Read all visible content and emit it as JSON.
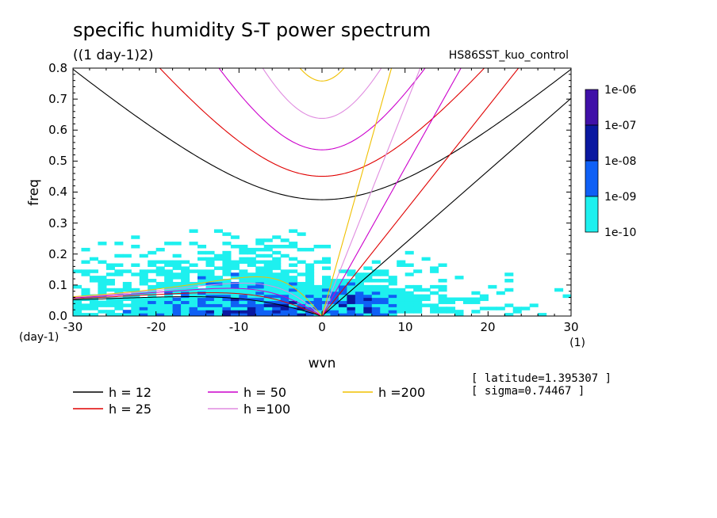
{
  "chart_data": {
    "type": "heatmap",
    "title": "specific humidity S-T power spectrum",
    "subtitle": "((1 day-1)2)",
    "run_label": "HS86SST_kuo_control",
    "xlabel": "wvn",
    "ylabel": "freq",
    "xunit": "(1)",
    "yunit": "(day-1)",
    "xlim": [
      -30,
      30
    ],
    "ylim": [
      0,
      0.8
    ],
    "xticks": [
      "-30",
      "-20",
      "-10",
      "0",
      "10",
      "20",
      "30"
    ],
    "yticks": [
      "0.0",
      "0.1",
      "0.2",
      "0.3",
      "0.4",
      "0.5",
      "0.6",
      "0.7",
      "0.8"
    ],
    "colorbar": {
      "labels": [
        "1e-06",
        "1e-07",
        "1e-08",
        "1e-09",
        "1e-10"
      ],
      "colors": [
        "#4010a8",
        "#0a18a0",
        "#0f60f5",
        "#1ef0ef"
      ]
    },
    "dispersion_curves": [
      {
        "label": "h = 12",
        "color": "#000000"
      },
      {
        "label": "h = 25",
        "color": "#e00000"
      },
      {
        "label": "h = 50",
        "color": "#cc00cc"
      },
      {
        "label": "h =100",
        "color": "#e08ce0"
      },
      {
        "label": "h =200",
        "color": "#f0c000"
      }
    ],
    "info": [
      "[ latitude=1.395307 ]",
      "[ sigma=0.74467 ]"
    ]
  }
}
